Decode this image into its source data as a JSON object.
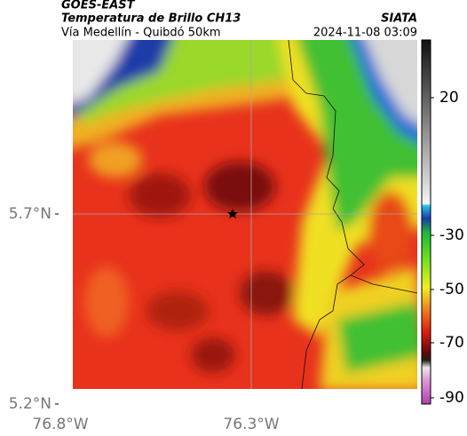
{
  "header": {
    "title": "GOES-EAST",
    "subtitle": "Temperatura de Brillo CH13",
    "route": "Vía Medellín - Quibdó 50km",
    "source": "SIATA",
    "timestamp": "2024-11-08 03:09"
  },
  "map": {
    "y_labels": [
      "5.7°N",
      "5.2°N"
    ],
    "x_labels": [
      "76.8°W",
      "76.3°W"
    ]
  },
  "colorbar": {
    "ticks": [
      20,
      -30,
      -50,
      -70,
      -90
    ]
  }
}
